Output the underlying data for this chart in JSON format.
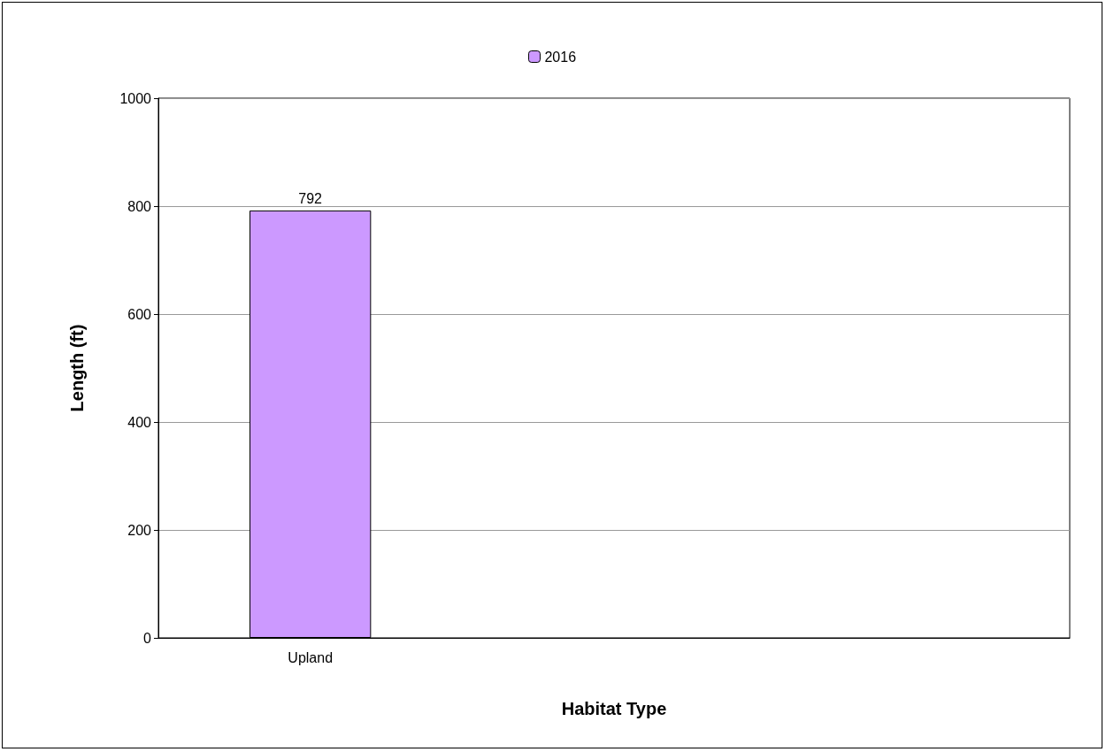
{
  "chart_data": {
    "type": "bar",
    "xlabel": "Habitat Type",
    "ylabel": "Length (ft)",
    "categories": [
      "Upland",
      null,
      null
    ],
    "series": [
      {
        "name": "2016",
        "color": "#cc99ff",
        "values": [
          792,
          null,
          null
        ]
      }
    ],
    "ylim": [
      0,
      1000
    ],
    "yticks": [
      0,
      200,
      400,
      600,
      800,
      1000
    ],
    "grid": "y",
    "legend": "top",
    "data_labels": true
  }
}
